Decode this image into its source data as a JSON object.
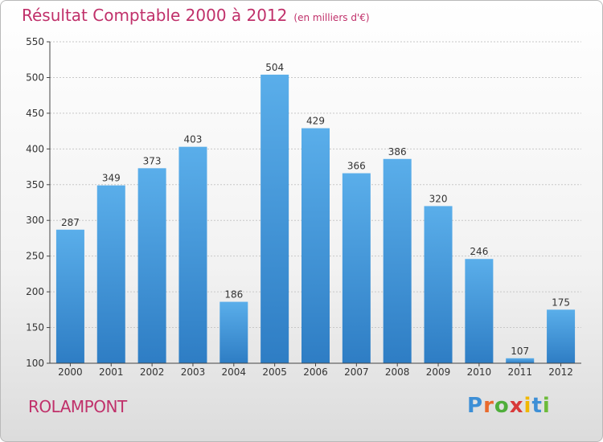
{
  "header": {
    "title": "Résultat Comptable 2000 à 2012",
    "subtitle": "(en milliers d'€)"
  },
  "footer": {
    "city": "ROLAMPONT"
  },
  "logo": {
    "letters": [
      "P",
      "r",
      "o",
      "x",
      "i",
      "t",
      "i"
    ],
    "colors": [
      "#3d8fd6",
      "#e96a2c",
      "#4fae3b",
      "#d83a3a",
      "#f1b800",
      "#3d8fd6",
      "#6dbb3a"
    ]
  },
  "chart_data": {
    "type": "bar",
    "title": "Résultat Comptable 2000 à 2012",
    "xlabel": "",
    "ylabel": "",
    "categories": [
      "2000",
      "2001",
      "2002",
      "2003",
      "2004",
      "2005",
      "2006",
      "2007",
      "2008",
      "2009",
      "2010",
      "2011",
      "2012"
    ],
    "values": [
      287,
      349,
      373,
      403,
      186,
      504,
      429,
      366,
      386,
      320,
      246,
      107,
      175
    ],
    "ylim": [
      100,
      550
    ],
    "yticks": [
      100,
      150,
      200,
      250,
      300,
      350,
      400,
      450,
      500,
      550
    ],
    "grid": true,
    "bar_color": "#4a9ee0"
  }
}
